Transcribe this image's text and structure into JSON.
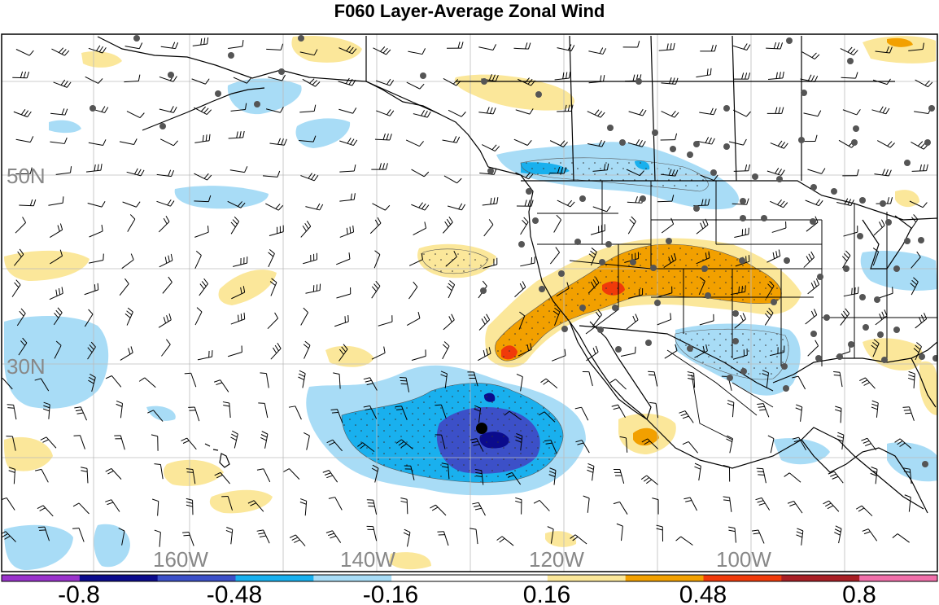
{
  "title": "F060 Layer-Average Zonal Wind",
  "lat_labels": [
    "50N",
    "30N"
  ],
  "lon_labels": [
    "160W",
    "140W",
    "120W",
    "100W"
  ],
  "colorbar": {
    "colors": [
      "#9a33cc",
      "#0b0b8c",
      "#3c50c8",
      "#19b0ee",
      "#a8dcf6",
      "#ffffff",
      "#ffffff",
      "#fbe79a",
      "#f2a000",
      "#f03a0a",
      "#a81e24",
      "#f070aa"
    ],
    "tick_labels": [
      "-0.8",
      "-0.48",
      "-0.16",
      "0.16",
      "0.48",
      "0.8"
    ]
  },
  "field_colors": {
    "pos1": "#fbe79a",
    "pos2": "#f2a000",
    "pos3": "#f03a0a",
    "neg1": "#a8dcf6",
    "neg2": "#19b0ee",
    "neg3": "#3c50c8",
    "neg4": "#0b0b8c"
  }
}
